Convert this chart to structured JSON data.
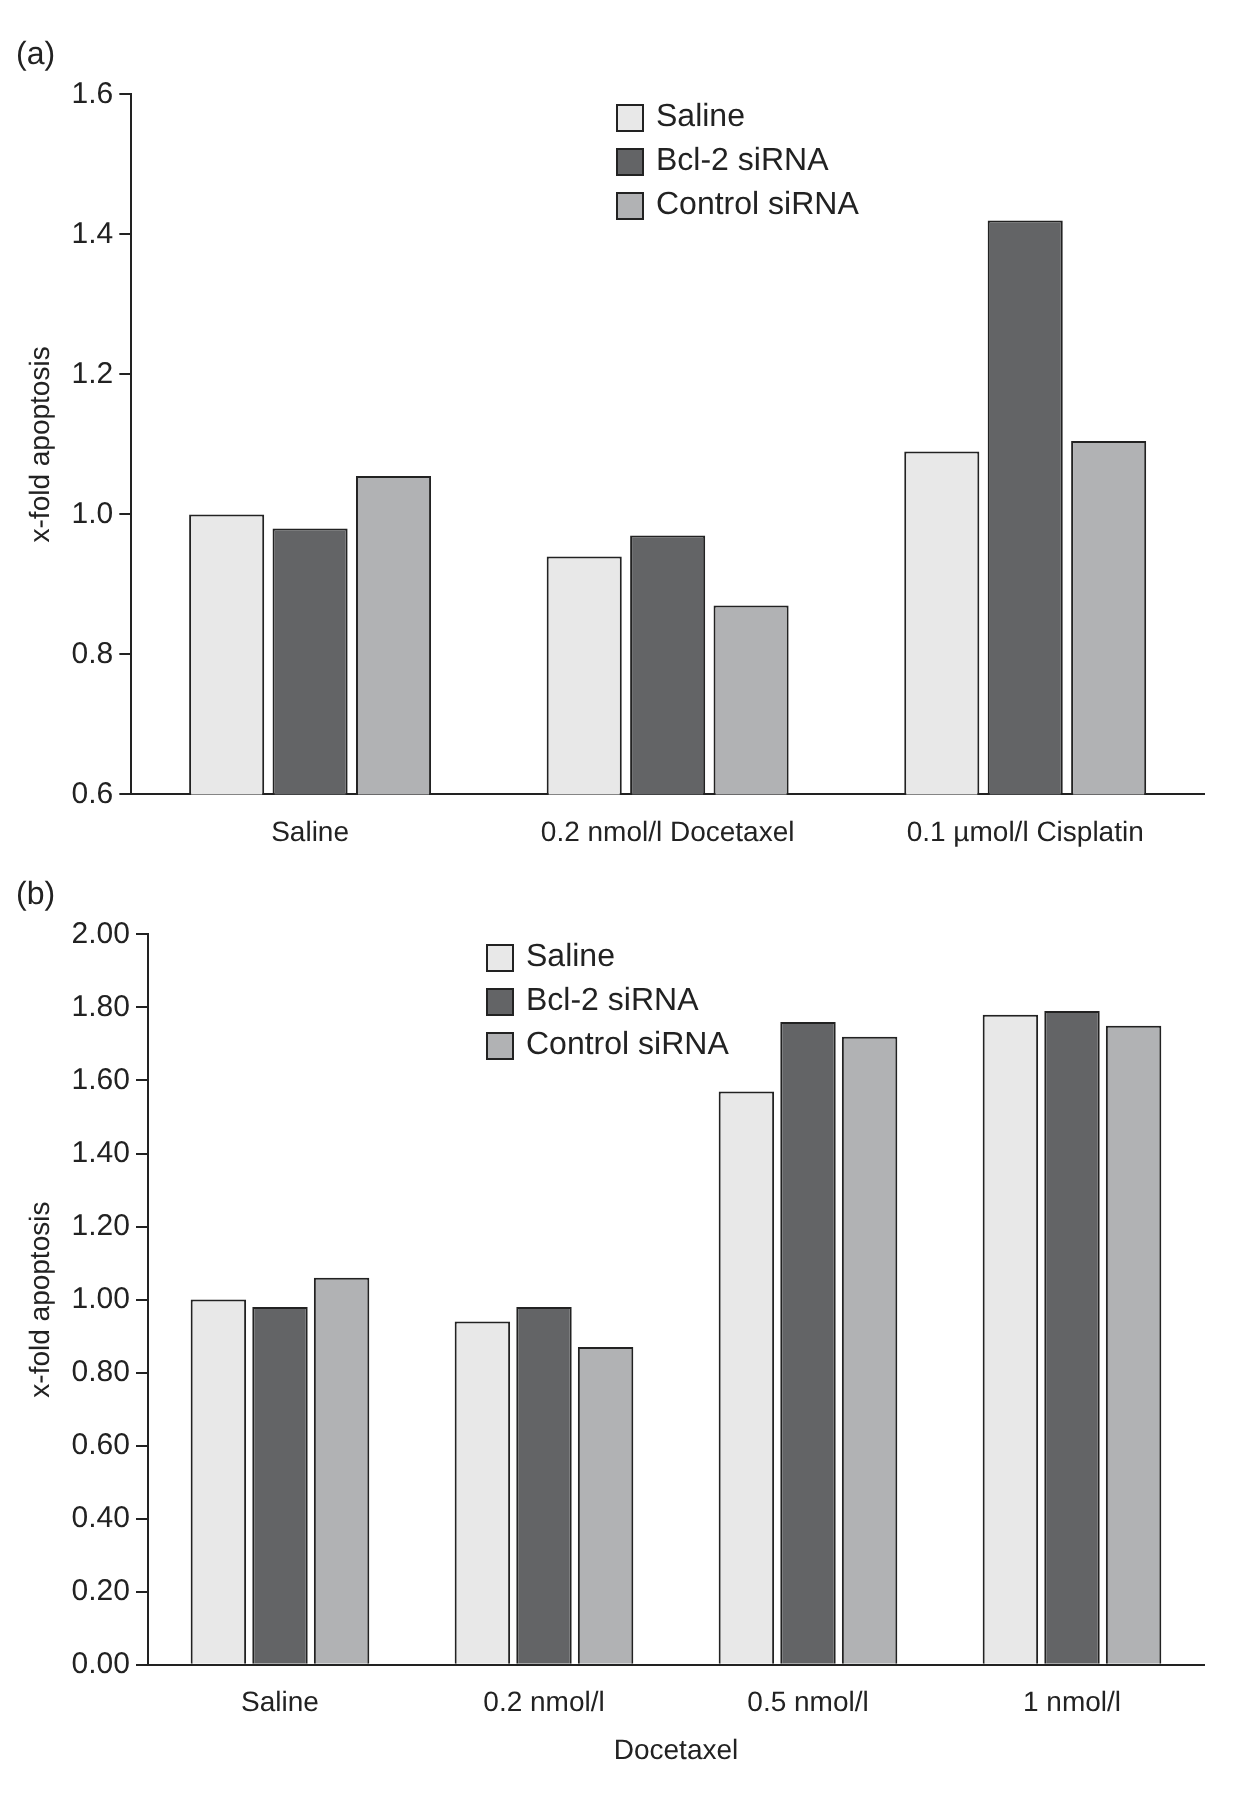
{
  "chart_data": [
    {
      "type": "bar",
      "title": "(a)",
      "ylabel": "x-fold apoptosis",
      "categories": [
        "Saline",
        "0.2 nmol/l Docetaxel",
        "0.1 µmol/l Cisplatin"
      ],
      "series": [
        {
          "name": "Saline",
          "color": "#e8e8e8",
          "values": [
            1.0,
            0.94,
            1.09
          ]
        },
        {
          "name": "Bcl-2 siRNA",
          "color": "#636466",
          "values": [
            0.98,
            0.97,
            1.42
          ]
        },
        {
          "name": "Control siRNA",
          "color": "#b1b2b4",
          "values": [
            1.055,
            0.87,
            1.105
          ]
        }
      ],
      "ylim": [
        0.6,
        1.6
      ],
      "yticks": [
        0.6,
        0.8,
        {
          "value": 1.0,
          "label": "1.0"
        },
        1.2,
        1.4,
        1.6
      ],
      "grid": false,
      "legend": "top"
    },
    {
      "type": "bar",
      "title": "(b)",
      "xlabel": "Docetaxel",
      "ylabel": "x-fold apoptosis",
      "categories": [
        "Saline",
        "0.2 nmol/l",
        "0.5 nmol/l",
        "1 nmol/l"
      ],
      "series": [
        {
          "name": "Saline",
          "color": "#e8e8e8",
          "values": [
            1.0,
            0.94,
            1.57,
            1.78
          ]
        },
        {
          "name": "Bcl-2 siRNA",
          "color": "#636466",
          "values": [
            0.98,
            0.98,
            1.76,
            1.79
          ]
        },
        {
          "name": "Control siRNA",
          "color": "#b1b2b4",
          "values": [
            1.06,
            0.87,
            1.72,
            1.75
          ]
        }
      ],
      "ylim": [
        0,
        2
      ],
      "yticks": [
        {
          "value": 0,
          "label": "0.00"
        },
        {
          "value": 0.2,
          "label": "0.20"
        },
        {
          "value": 0.4,
          "label": "0.40"
        },
        {
          "value": 0.6,
          "label": "0.60"
        },
        {
          "value": 0.8,
          "label": "0.80"
        },
        {
          "value": 1,
          "label": "1.00"
        },
        {
          "value": 1.2,
          "label": "1.20"
        },
        {
          "value": 1.4,
          "label": "1.40"
        },
        {
          "value": 1.6,
          "label": "1.60"
        },
        {
          "value": 1.8,
          "label": "1.80"
        },
        {
          "value": 2,
          "label": "2.00"
        }
      ],
      "grid": false,
      "legend": "top"
    }
  ]
}
